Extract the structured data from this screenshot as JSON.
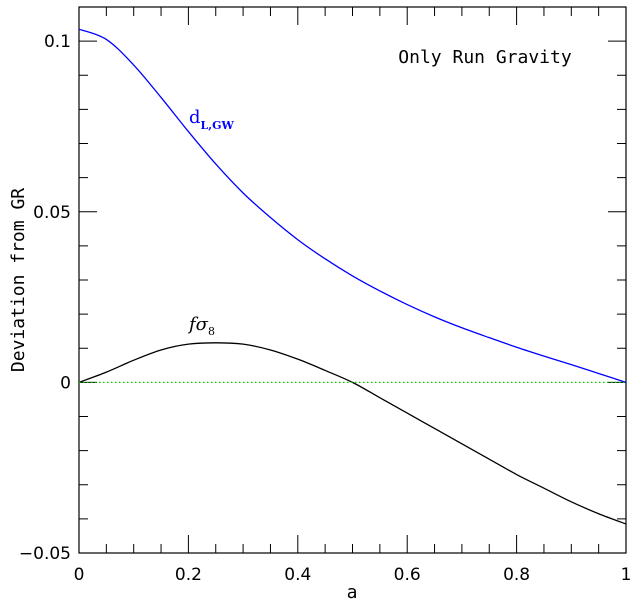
{
  "chart_data": {
    "type": "line",
    "title": "",
    "xlabel": "a",
    "ylabel": "Deviation from GR",
    "xlim": [
      0,
      1
    ],
    "ylim": [
      -0.05,
      0.11
    ],
    "xticks": [
      0,
      0.2,
      0.4,
      0.6,
      0.8,
      1
    ],
    "xtick_labels": [
      "0",
      "0.2",
      "0.4",
      "0.6",
      "0.8",
      "1"
    ],
    "yticks": [
      -0.05,
      0,
      0.05,
      0.1
    ],
    "ytick_labels": [
      "−0.05",
      "0",
      "0.05",
      "0.1"
    ],
    "annotation": "Only Run Gravity",
    "grid": false,
    "series": [
      {
        "name": "d",
        "name_subscript": "L,GW",
        "color": "#0000ff",
        "style": "solid",
        "x": [
          0,
          0.05,
          0.1,
          0.15,
          0.2,
          0.25,
          0.3,
          0.35,
          0.4,
          0.45,
          0.5,
          0.55,
          0.6,
          0.65,
          0.7,
          0.75,
          0.8,
          0.85,
          0.9,
          0.95,
          1.0
        ],
        "y": [
          0.1035,
          0.1005,
          0.093,
          0.0835,
          0.0735,
          0.064,
          0.0555,
          0.0483,
          0.0418,
          0.0362,
          0.0312,
          0.0268,
          0.0228,
          0.0192,
          0.016,
          0.0131,
          0.0103,
          0.0077,
          0.0052,
          0.0026,
          0.0
        ]
      },
      {
        "name": "fσ",
        "name_subscript": "8",
        "color": "#000000",
        "style": "solid",
        "x": [
          0,
          0.05,
          0.1,
          0.15,
          0.2,
          0.25,
          0.3,
          0.35,
          0.4,
          0.45,
          0.5,
          0.55,
          0.6,
          0.65,
          0.7,
          0.75,
          0.8,
          0.85,
          0.9,
          0.95,
          1.0
        ],
        "y": [
          0.0,
          0.003,
          0.0065,
          0.0095,
          0.0112,
          0.0116,
          0.0112,
          0.0095,
          0.0068,
          0.0035,
          0.0,
          -0.0045,
          -0.009,
          -0.0135,
          -0.018,
          -0.0225,
          -0.027,
          -0.031,
          -0.035,
          -0.0385,
          -0.0415
        ]
      },
      {
        "name": "",
        "color": "#00cc00",
        "style": "dotted",
        "x": [
          0,
          1
        ],
        "y": [
          0,
          0
        ]
      }
    ]
  }
}
